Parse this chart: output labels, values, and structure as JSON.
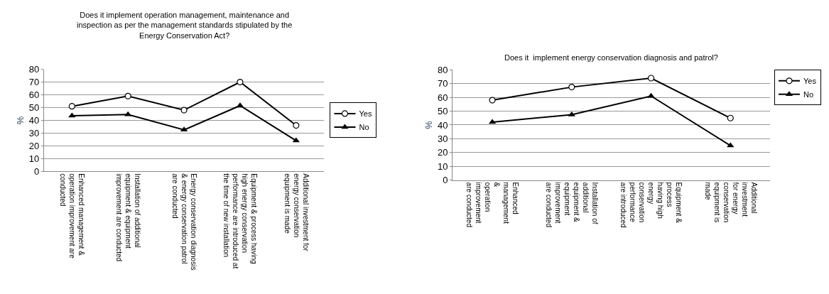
{
  "chart_data": [
    {
      "type": "line",
      "title": "Does it implement operation management, maintenance and\ninspection as per the management standards stipulated by the\nEnergy Conservation Act?",
      "ylabel": "%",
      "categories": [
        "Enhanced management &\noperation improvement are\nconducted",
        "Installation of additional\nequipment & equipment\nimprovement are conducted",
        "Energy conservation diagnosis\n& energy conservation patrol\nare conducted",
        "Equipment & process having\nhigh energy conservation\nperformance are introduced at\nthe time of new installation",
        "Additional investment for\nenergy conservation\nequipment is made"
      ],
      "series": [
        {
          "name": "Yes",
          "color": "#000000",
          "marker": "circle",
          "values": [
            51,
            59,
            48,
            70,
            36
          ]
        },
        {
          "name": "No",
          "color": "#000000",
          "marker": "triangle",
          "values": [
            43.5,
            44.5,
            32.5,
            51.5,
            24
          ]
        }
      ],
      "ylim": [
        0,
        80
      ],
      "yticks": [
        0,
        10,
        20,
        30,
        40,
        50,
        60,
        70,
        80
      ],
      "grid": "y",
      "legend": "right",
      "line_style": "solid"
    },
    {
      "type": "line",
      "title": "Does it  implement energy conservation diagnosis and patrol?",
      "ylabel": "%",
      "categories": [
        "Enhanced\nmanagement\n&\noperation\nimprovement\nare conducted",
        "Installation of\nadditional\nequipment &\nequipment\nimprovement\nare conducted",
        "Equipment &\nprocess\nhaving high\nenergy\nconservation\nperformance\nare introduced",
        "Additional\ninvestment\nfor energy\nconservation\nequipment is\nmade"
      ],
      "series": [
        {
          "name": "Yes",
          "color": "#000000",
          "marker": "circle",
          "values": [
            58,
            67.5,
            74,
            45
          ]
        },
        {
          "name": "No",
          "color": "#000000",
          "marker": "triangle",
          "values": [
            42,
            47.5,
            61,
            25
          ]
        }
      ],
      "ylim": [
        0,
        80
      ],
      "yticks": [
        0,
        10,
        20,
        30,
        40,
        50,
        60,
        70,
        80
      ],
      "grid": "y",
      "legend": "top right",
      "line_style": "solid"
    }
  ]
}
